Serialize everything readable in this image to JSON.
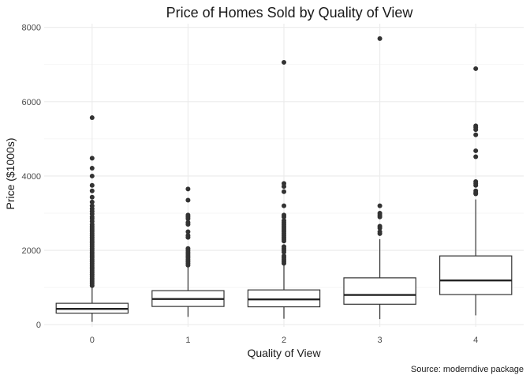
{
  "chart_data": {
    "type": "box",
    "title": "Price of Homes Sold by Quality of View",
    "xlabel": "Quality of View",
    "ylabel": "Price ($1000s)",
    "caption": "Source: moderndive package",
    "categories": [
      "0",
      "1",
      "2",
      "3",
      "4"
    ],
    "ylim": [
      -60,
      8100
    ],
    "yticks": [
      0,
      2000,
      4000,
      6000,
      8000
    ],
    "yticks_minor": [
      1000,
      3000,
      5000,
      7000
    ],
    "grid": true,
    "boxes": [
      {
        "category": "0",
        "whisker_low": 75,
        "q1": 310,
        "median": 425,
        "q3": 575,
        "whisker_high": 1000,
        "outliers": [
          5570,
          4480,
          4210,
          4000,
          3750,
          3600,
          3430,
          3300,
          3200,
          3120,
          3050,
          2980,
          2900,
          2850,
          2780,
          2700,
          2650,
          2600,
          2550,
          2500,
          2450,
          2400,
          2350,
          2300,
          2250,
          2200,
          2150,
          2100,
          2050,
          2000,
          1950,
          1900,
          1850,
          1800,
          1750,
          1700,
          1650,
          1600,
          1550,
          1500,
          1450,
          1400,
          1350,
          1300,
          1250,
          1200,
          1150,
          1100,
          1050
        ]
      },
      {
        "category": "1",
        "whisker_low": 210,
        "q1": 490,
        "median": 690,
        "q3": 915,
        "whisker_high": 1540,
        "outliers": [
          3650,
          3350,
          2950,
          2900,
          2850,
          2750,
          2700,
          2500,
          2400,
          2350,
          2050,
          2000,
          1950,
          1900,
          1850,
          1800,
          1750,
          1700,
          1650,
          1600
        ]
      },
      {
        "category": "2",
        "whisker_low": 160,
        "q1": 480,
        "median": 680,
        "q3": 935,
        "whisker_high": 1600,
        "outliers": [
          7060,
          3800,
          3720,
          3580,
          3200,
          2950,
          2900,
          2800,
          2750,
          2700,
          2650,
          2600,
          2550,
          2500,
          2450,
          2400,
          2350,
          2300,
          2250,
          2100,
          2050,
          2000,
          1950,
          1850,
          1800,
          1750,
          1700,
          1650
        ]
      },
      {
        "category": "3",
        "whisker_low": 150,
        "q1": 550,
        "median": 800,
        "q3": 1260,
        "whisker_high": 2300,
        "outliers": [
          7700,
          3200,
          3000,
          2950,
          2900,
          2650,
          2600,
          2500,
          2450
        ]
      },
      {
        "category": "4",
        "whisker_low": 250,
        "q1": 810,
        "median": 1190,
        "q3": 1850,
        "whisker_high": 3370,
        "outliers": [
          6890,
          5350,
          5310,
          5250,
          5110,
          4680,
          4520,
          3850,
          3800,
          3750,
          3600,
          3550,
          3520
        ]
      }
    ]
  }
}
